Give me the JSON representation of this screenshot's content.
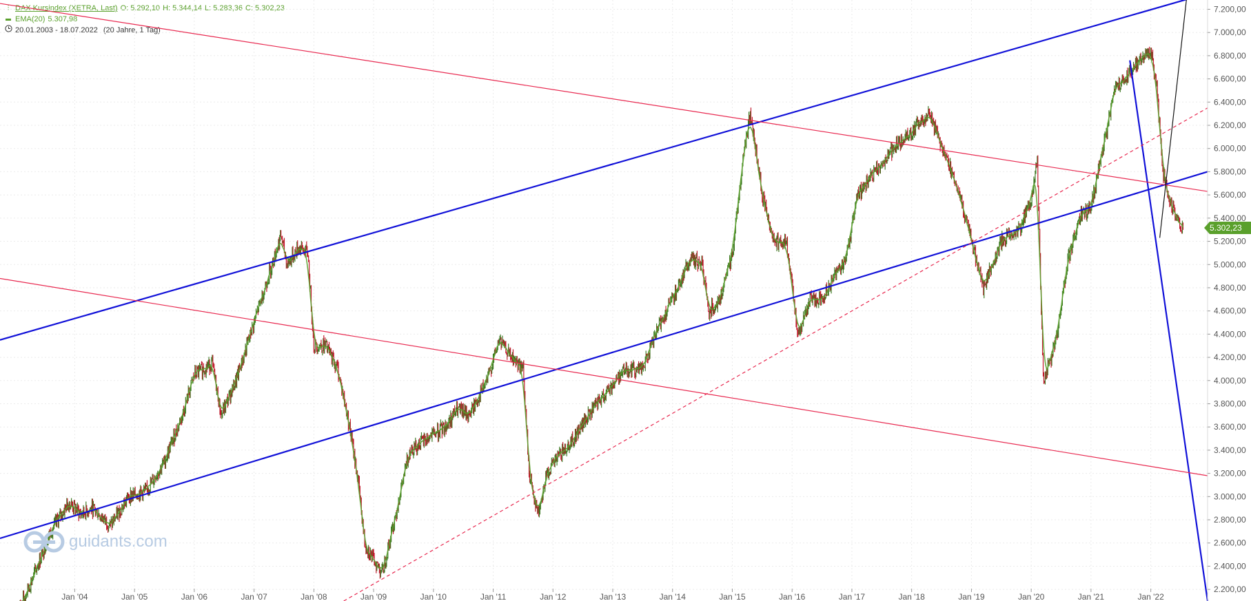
{
  "legend": {
    "instrument_label": "DAX Kursindex (XETRA, Last)",
    "open_label": "O: 5.292,10",
    "high_label": "H: 5.344,14",
    "low_label": "L: 5.283,36",
    "close_label": "C: 5.302,23",
    "ema_label": "EMA(20)",
    "ema_value": "5.307,98",
    "range_label": "20.01.2003 - 18.07.2022",
    "period_label": "(20 Jahre, 1 Tag)"
  },
  "price_tag": "5.302,23",
  "watermark": "guidants.com",
  "colors": {
    "accent": "#5aa02c",
    "channel": "#1010d8",
    "pink": "#e8284f",
    "ema": "#5aa02c",
    "down": "#c0192c"
  },
  "chart_data": {
    "type": "line",
    "x_tick_labels": [
      "Jan '04",
      "Jan '05",
      "Jan '06",
      "Jan '07",
      "Jan '08",
      "Jan '09",
      "Jan '10",
      "Jan '11",
      "Jan '12",
      "Jan '13",
      "Jan '14",
      "Jan '15",
      "Jan '16",
      "Jan '17",
      "Jan '18",
      "Jan '19",
      "Jan '20",
      "Jan '21",
      "Jan '22"
    ],
    "x_tick_values": [
      2004,
      2005,
      2006,
      2007,
      2008,
      2009,
      2010,
      2011,
      2012,
      2013,
      2014,
      2015,
      2016,
      2017,
      2018,
      2019,
      2020,
      2021,
      2022
    ],
    "y_ticks": [
      2200,
      2400,
      2600,
      2800,
      3000,
      3200,
      3400,
      3600,
      3800,
      4000,
      4200,
      4400,
      4600,
      4800,
      5000,
      5200,
      5400,
      5600,
      5800,
      6000,
      6200,
      6400,
      6600,
      6800,
      7000,
      7200
    ],
    "y_tick_labels": [
      "2.200,00",
      "2.400,00",
      "2.600,00",
      "2.800,00",
      "3.000,00",
      "3.200,00",
      "3.400,00",
      "3.600,00",
      "3.800,00",
      "4.000,00",
      "4.200,00",
      "4.400,00",
      "4.600,00",
      "4.800,00",
      "5.000,00",
      "5.200,00",
      "5.400,00",
      "5.600,00",
      "5.800,00",
      "6.000,00",
      "6.200,00",
      "6.400,00",
      "6.600,00",
      "6.800,00",
      "7.000,00",
      "7.200,00"
    ],
    "xlim": [
      2002.75,
      2022.95
    ],
    "ylim": [
      2100,
      7280
    ],
    "grid": true,
    "series": [
      {
        "name": "DAX Kursindex (XETRA, Last)",
        "x": [
          2003.05,
          2003.3,
          2003.6,
          2003.9,
          2004.1,
          2004.3,
          2004.6,
          2004.9,
          2005.2,
          2005.5,
          2005.8,
          2006.0,
          2006.3,
          2006.45,
          2006.7,
          2007.0,
          2007.3,
          2007.45,
          2007.55,
          2007.75,
          2007.9,
          2008.0,
          2008.2,
          2008.4,
          2008.6,
          2008.75,
          2008.85,
          2009.0,
          2009.15,
          2009.35,
          2009.6,
          2009.9,
          2010.2,
          2010.4,
          2010.6,
          2010.9,
          2011.1,
          2011.3,
          2011.5,
          2011.6,
          2011.75,
          2011.9,
          2012.1,
          2012.35,
          2012.6,
          2012.9,
          2013.2,
          2013.5,
          2013.8,
          2014.0,
          2014.3,
          2014.5,
          2014.6,
          2014.8,
          2015.0,
          2015.2,
          2015.3,
          2015.5,
          2015.7,
          2015.9,
          2016.1,
          2016.3,
          2016.5,
          2016.7,
          2016.9,
          2017.1,
          2017.4,
          2017.7,
          2017.9,
          2018.1,
          2018.3,
          2018.6,
          2018.8,
          2018.95,
          2019.2,
          2019.5,
          2019.8,
          2020.0,
          2020.1,
          2020.2,
          2020.4,
          2020.6,
          2020.8,
          2021.0,
          2021.2,
          2021.4,
          2021.7,
          2021.9,
          2022.0,
          2022.1,
          2022.2,
          2022.35,
          2022.54
        ],
        "y": [
          2000,
          2300,
          2700,
          2950,
          2850,
          2900,
          2750,
          3000,
          3050,
          3300,
          3700,
          4050,
          4150,
          3700,
          4000,
          4500,
          5000,
          5250,
          5000,
          5150,
          5100,
          4300,
          4300,
          4100,
          3600,
          3100,
          2600,
          2450,
          2350,
          2800,
          3400,
          3500,
          3600,
          3750,
          3700,
          4000,
          4350,
          4200,
          4100,
          3200,
          2850,
          3200,
          3350,
          3500,
          3700,
          3900,
          4100,
          4100,
          4500,
          4700,
          5050,
          5000,
          4600,
          4700,
          5100,
          6000,
          6300,
          5600,
          5200,
          5200,
          4400,
          4700,
          4700,
          4900,
          5050,
          5600,
          5800,
          6000,
          6100,
          6200,
          6300,
          5900,
          5600,
          5300,
          4800,
          5200,
          5300,
          5550,
          5900,
          4000,
          4300,
          5000,
          5400,
          5500,
          6000,
          6500,
          6700,
          6800,
          6850,
          6550,
          5800,
          5500,
          5302.23
        ]
      },
      {
        "name": "EMA(20)",
        "value": 5307.98
      }
    ],
    "trendlines": [
      {
        "name": "channel-upper",
        "style": "solid-blue",
        "x1": 2002.75,
        "y1": 4350,
        "x2": 2022.7,
        "y2": 7300
      },
      {
        "name": "channel-lower",
        "style": "solid-blue",
        "x1": 2002.75,
        "y1": 2640,
        "x2": 2022.95,
        "y2": 5800
      },
      {
        "name": "down-steep",
        "style": "solid-blue",
        "x1": 2021.65,
        "y1": 6760,
        "x2": 2022.95,
        "y2": 2100
      },
      {
        "name": "pink-upper",
        "style": "solid-pink",
        "x1": 2002.75,
        "y1": 7250,
        "x2": 2022.95,
        "y2": 5630
      },
      {
        "name": "pink-lower",
        "style": "solid-pink",
        "x1": 2002.75,
        "y1": 4880,
        "x2": 2022.95,
        "y2": 3180
      },
      {
        "name": "pink-dashed",
        "style": "dashed-pink",
        "x1": 2008.5,
        "y1": 2100,
        "x2": 2022.95,
        "y2": 6350
      },
      {
        "name": "black-up",
        "style": "solid-black",
        "x1": 2022.15,
        "y1": 5230,
        "x2": 2022.6,
        "y2": 7300
      }
    ]
  }
}
